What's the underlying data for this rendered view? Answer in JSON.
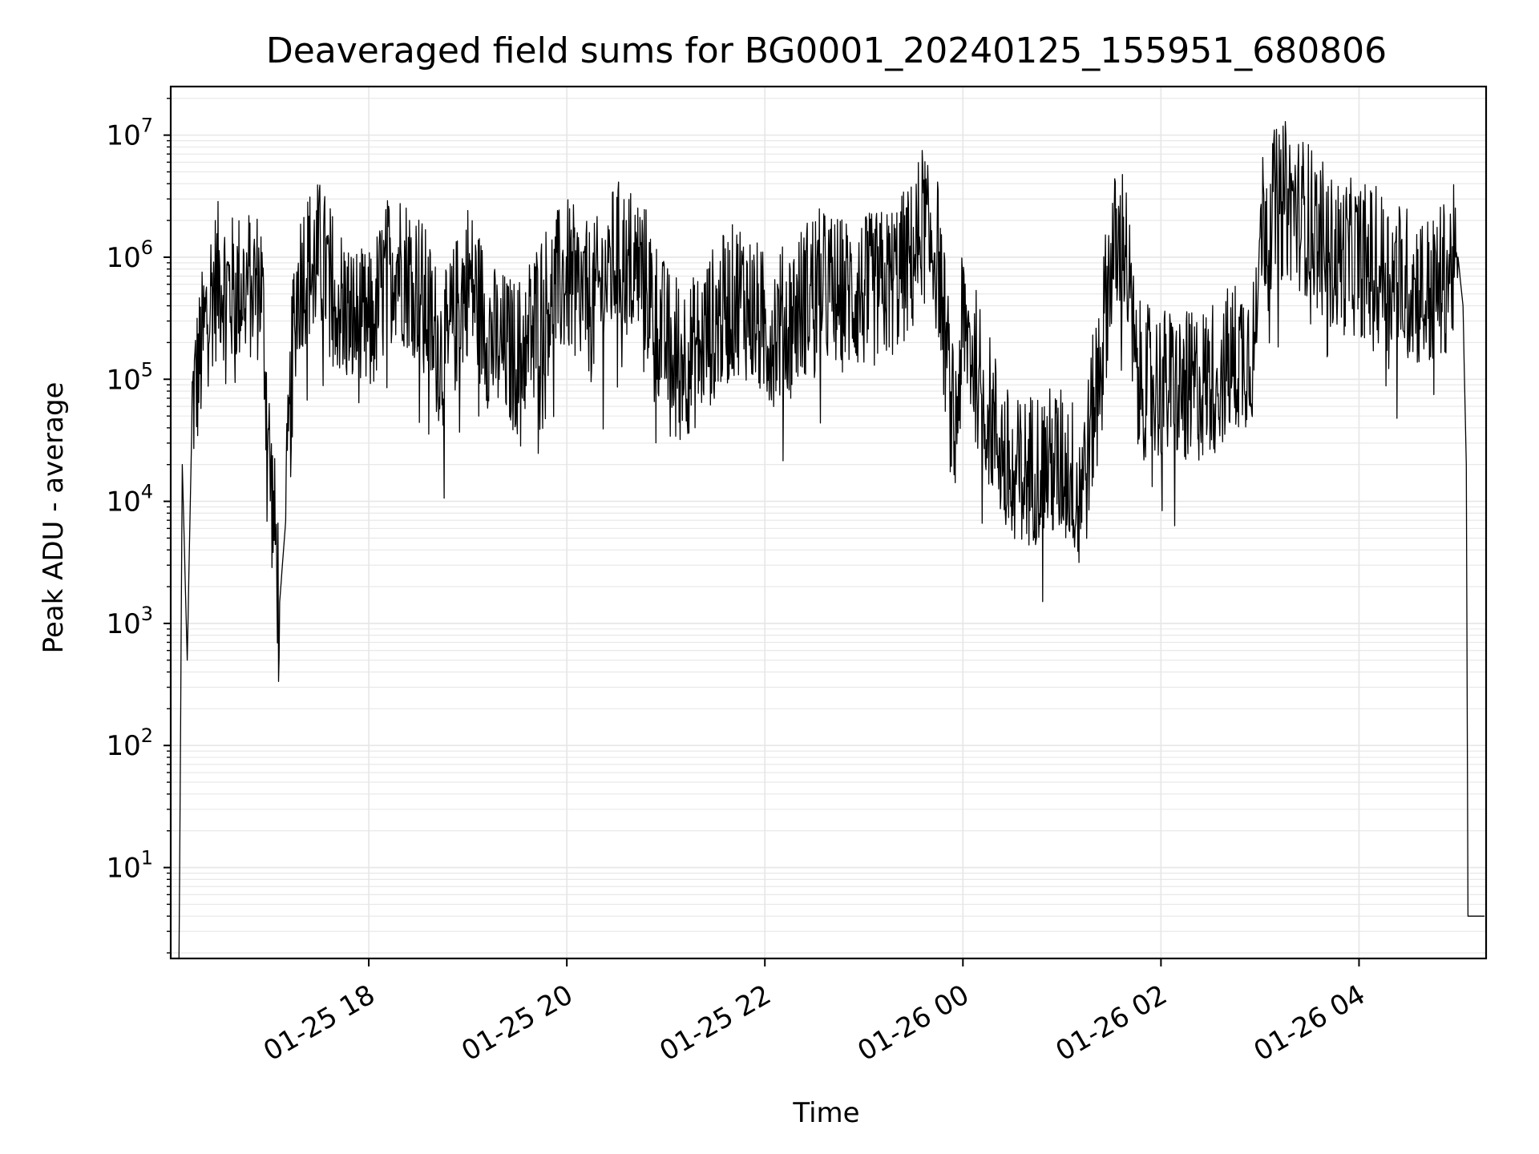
{
  "chart_data": {
    "type": "line",
    "title": "Deaveraged field sums for BG0001_20240125_155951_680806",
    "xlabel": "Time",
    "ylabel": "Peak ADU - average",
    "y_scale": "log",
    "grid": true,
    "grid_minor": true,
    "line_color": "#000000",
    "grid_color": "#e6e6e6",
    "x_tick_labels": [
      "01-25 18",
      "01-25 20",
      "01-25 22",
      "01-26 00",
      "01-26 02",
      "01-26 04"
    ],
    "x_ticks": [
      "2024-01-25 18:00",
      "2024-01-25 20:00",
      "2024-01-25 22:00",
      "2024-01-26 00:00",
      "2024-01-26 02:00",
      "2024-01-26 04:00"
    ],
    "xlim": [
      "2024-01-25 16:00",
      "2024-01-26 05:17"
    ],
    "y_tick_labels": [
      {
        "base": "10",
        "exp": "1"
      },
      {
        "base": "10",
        "exp": "2"
      },
      {
        "base": "10",
        "exp": "3"
      },
      {
        "base": "10",
        "exp": "4"
      },
      {
        "base": "10",
        "exp": "5"
      },
      {
        "base": "10",
        "exp": "6"
      },
      {
        "base": "10",
        "exp": "7"
      }
    ],
    "ylim": [
      1.8,
      25000000
    ],
    "series": [
      {
        "x": [
          "2024-01-25 16:05",
          "2024-01-25 16:07",
          "2024-01-25 16:10",
          "2024-01-25 16:13",
          "2024-01-25 16:18",
          "2024-01-25 16:24",
          "2024-01-25 16:30",
          "2024-01-25 16:36",
          "2024-01-25 16:45",
          "2024-01-25 16:55",
          "2024-01-25 17:00",
          "2024-01-25 17:06",
          "2024-01-25 17:10",
          "2024-01-25 17:15",
          "2024-01-25 17:20",
          "2024-01-25 17:30",
          "2024-01-25 17:40",
          "2024-01-25 17:50",
          "2024-01-25 18:00",
          "2024-01-25 18:15",
          "2024-01-25 18:30",
          "2024-01-25 18:45",
          "2024-01-25 19:00",
          "2024-01-25 19:15",
          "2024-01-25 19:30",
          "2024-01-25 19:45",
          "2024-01-25 20:00",
          "2024-01-25 20:15",
          "2024-01-25 20:30",
          "2024-01-25 20:45",
          "2024-01-25 21:00",
          "2024-01-25 21:15",
          "2024-01-25 21:30",
          "2024-01-25 21:45",
          "2024-01-25 22:00",
          "2024-01-25 22:15",
          "2024-01-25 22:30",
          "2024-01-25 22:45",
          "2024-01-25 23:00",
          "2024-01-25 23:15",
          "2024-01-25 23:30",
          "2024-01-25 23:35",
          "2024-01-25 23:45",
          "2024-01-25 23:55",
          "2024-01-26 00:00",
          "2024-01-26 00:15",
          "2024-01-26 00:30",
          "2024-01-26 00:45",
          "2024-01-26 01:00",
          "2024-01-26 01:10",
          "2024-01-26 01:15",
          "2024-01-26 01:30",
          "2024-01-26 01:38",
          "2024-01-26 01:45",
          "2024-01-26 02:00",
          "2024-01-26 02:15",
          "2024-01-26 02:30",
          "2024-01-26 02:45",
          "2024-01-26 02:58",
          "2024-01-26 03:00",
          "2024-01-26 03:15",
          "2024-01-26 03:30",
          "2024-01-26 03:45",
          "2024-01-26 04:00",
          "2024-01-26 04:15",
          "2024-01-26 04:30",
          "2024-01-26 04:45",
          "2024-01-26 05:00",
          "2024-01-26 05:03",
          "2024-01-26 05:05",
          "2024-01-26 05:06",
          "2024-01-26 05:16"
        ],
        "y": [
          1.5,
          20000,
          500,
          60000,
          150000,
          500000,
          700000,
          500000,
          600000,
          600000,
          20000,
          1500,
          8000,
          400000,
          800000,
          1000000,
          500000,
          300000,
          250000,
          1000000,
          600000,
          150000,
          700000,
          200000,
          150000,
          400000,
          700000,
          400000,
          1000000,
          800000,
          200000,
          150000,
          300000,
          500000,
          250000,
          300000,
          600000,
          500000,
          500000,
          600000,
          1000000,
          2000000,
          1000000,
          30000,
          300000,
          60000,
          15000,
          20000,
          20000,
          15000,
          20000,
          1000000,
          1500000,
          100000,
          90000,
          80000,
          100000,
          150000,
          200000,
          2000000,
          3000000,
          2000000,
          1000000,
          1000000,
          800000,
          600000,
          500000,
          1000000,
          400000,
          20000,
          4,
          4
        ]
      }
    ]
  }
}
